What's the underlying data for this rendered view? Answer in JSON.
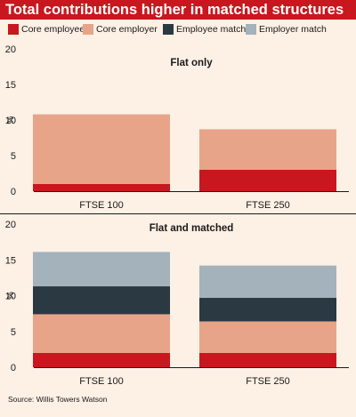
{
  "title": "Total contributions higher in matched structures",
  "source": "Source: Willis Towers Watson",
  "colors": {
    "title_bg": "#c8171e",
    "background": "#fdf0e5",
    "Core employee": "#c8171e",
    "Core employer": "#e8a488",
    "Employee match": "#2a3942",
    "Employer match": "#a3b2bb"
  },
  "legend": [
    "Core employee",
    "Core employer",
    "Employee match",
    "Employer match"
  ],
  "chart_data": [
    {
      "type": "bar",
      "stacked": true,
      "title": "Flat only",
      "ylabel": "%",
      "ylim": [
        0,
        20
      ],
      "yticks": [
        0,
        5,
        10,
        15,
        20
      ],
      "grid": false,
      "categories": [
        "FTSE 100",
        "FTSE 250"
      ],
      "series": [
        {
          "name": "Core employee",
          "values": [
            1.0,
            3.0
          ]
        },
        {
          "name": "Core employer",
          "values": [
            9.8,
            5.7
          ]
        }
      ]
    },
    {
      "type": "bar",
      "stacked": true,
      "title": "Flat and matched",
      "ylabel": "%",
      "ylim": [
        0,
        20
      ],
      "yticks": [
        0,
        5,
        10,
        15,
        20
      ],
      "grid": false,
      "categories": [
        "FTSE 100",
        "FTSE 250"
      ],
      "series": [
        {
          "name": "Core employee",
          "values": [
            2.0,
            2.0
          ]
        },
        {
          "name": "Core employer",
          "values": [
            5.4,
            4.4
          ]
        },
        {
          "name": "Employee match",
          "values": [
            3.9,
            3.3
          ]
        },
        {
          "name": "Employer match",
          "values": [
            4.8,
            4.5
          ]
        }
      ]
    }
  ]
}
